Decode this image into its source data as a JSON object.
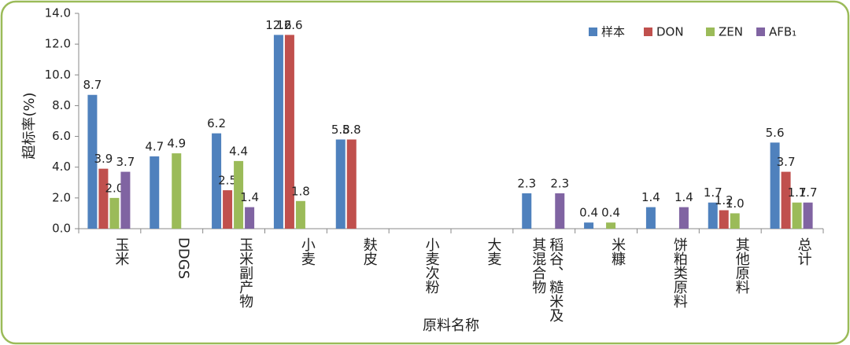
{
  "chart_data": {
    "type": "bar",
    "x_label": "原料名称",
    "y_label": "超标率(%)",
    "categories": [
      "玉米",
      "DDGS",
      "玉米副产物",
      "小麦",
      "麸皮",
      "小麦次粉",
      "大麦",
      "稻谷、糙米及其混合物",
      "米糠",
      "饼粕类原料",
      "其他原料",
      "总计"
    ],
    "series": [
      {
        "name": "样本",
        "color": "#4F81BD",
        "values": [
          8.7,
          4.7,
          6.2,
          12.6,
          5.8,
          null,
          null,
          2.3,
          0.4,
          1.4,
          1.7,
          5.6
        ],
        "value_labels": [
          "8.7",
          "4.7",
          "6.2",
          "12.6",
          "5.8",
          null,
          null,
          "2.3",
          "0.4",
          "1.4",
          "1.7",
          "5.6"
        ]
      },
      {
        "name": "DON",
        "color": "#C0504D",
        "values": [
          3.9,
          null,
          2.5,
          12.6,
          5.8,
          null,
          null,
          null,
          null,
          null,
          1.2,
          3.7
        ],
        "value_labels": [
          "3.9",
          null,
          "2.5",
          "12.6",
          "5.8",
          null,
          null,
          null,
          null,
          null,
          "1.2",
          "3.7"
        ]
      },
      {
        "name": "ZEN",
        "color": "#9BBB59",
        "values": [
          2.0,
          4.9,
          4.4,
          1.8,
          null,
          null,
          null,
          null,
          0.4,
          null,
          1.0,
          1.7
        ],
        "value_labels": [
          "2.0",
          "4.9",
          "4.4",
          "1.8",
          null,
          null,
          null,
          null,
          "0.4",
          null,
          "1.0",
          "1.7"
        ]
      },
      {
        "name": "AFB₁",
        "color": "#8064A2",
        "values": [
          3.7,
          null,
          1.4,
          null,
          null,
          null,
          null,
          2.3,
          null,
          1.4,
          null,
          1.7
        ],
        "value_labels": [
          "3.7",
          null,
          "1.4",
          null,
          null,
          null,
          null,
          "2.3",
          null,
          "1.4",
          null,
          "1.7"
        ]
      }
    ],
    "ylim": [
      0,
      14
    ],
    "yticks": [
      {
        "value": 0,
        "label": "0.0"
      },
      {
        "value": 2,
        "label": "2.0"
      },
      {
        "value": 4,
        "label": "4.0"
      },
      {
        "value": 6,
        "label": "6.0"
      },
      {
        "value": 8,
        "label": "8.0"
      },
      {
        "value": 10,
        "label": "10.0"
      },
      {
        "value": 12,
        "label": "12.0"
      },
      {
        "value": 14,
        "label": "14.0"
      }
    ],
    "legend": "top-right"
  }
}
